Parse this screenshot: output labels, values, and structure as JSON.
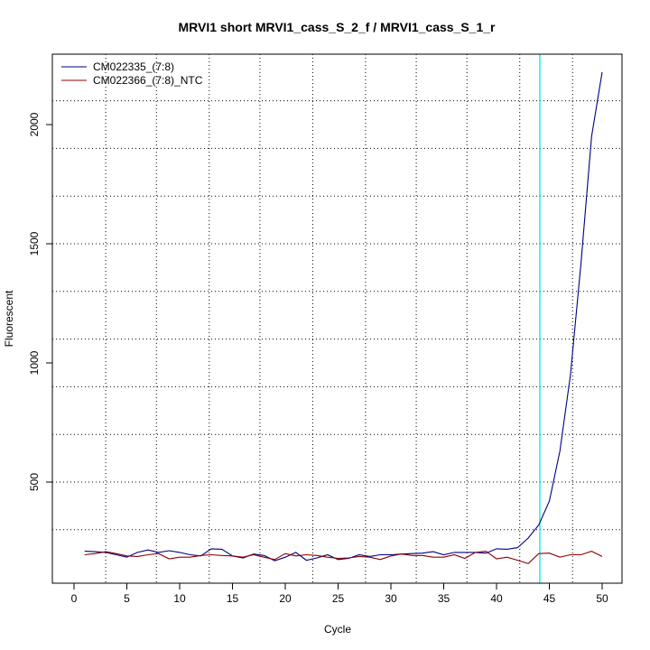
{
  "chart_data": {
    "type": "line",
    "title": "MRVI1 short MRVI1_cass_S_2_f / MRVI1_cass_S_1_r",
    "xlabel": "Cycle",
    "ylabel": "Fluorescent",
    "xlim": [
      0,
      52
    ],
    "ylim": [
      140,
      2290
    ],
    "x_ticks": [
      0,
      5,
      10,
      15,
      20,
      25,
      30,
      35,
      40,
      45,
      50
    ],
    "y_ticks": [
      500,
      1000,
      1500,
      2000
    ],
    "grid": true,
    "grid_x": [
      3,
      7.8,
      12.8,
      17.6,
      22.6,
      27.6,
      32.4,
      37.2,
      42.2,
      47.2
    ],
    "grid_y": [
      300,
      500,
      700,
      900,
      1100,
      1300,
      1500,
      1700,
      1900,
      2100
    ],
    "threshold_cycle": 44.1,
    "threshold_color": "#00e5ee",
    "legend_position": "top-left",
    "x": [
      1,
      2,
      3,
      4,
      5,
      6,
      7,
      8,
      9,
      10,
      11,
      12,
      13,
      14,
      15,
      16,
      17,
      18,
      19,
      20,
      21,
      22,
      23,
      24,
      25,
      26,
      27,
      28,
      29,
      30,
      31,
      32,
      33,
      34,
      35,
      36,
      37,
      38,
      39,
      40,
      41,
      42,
      43,
      44,
      45,
      46,
      47,
      48,
      49,
      50
    ],
    "series": [
      {
        "name": "CM022335_(7:8)",
        "color": "#00007f",
        "values": [
          210,
          208,
          205,
          195,
          185,
          205,
          215,
          205,
          212,
          205,
          195,
          190,
          220,
          218,
          190,
          182,
          198,
          192,
          170,
          185,
          205,
          172,
          182,
          195,
          175,
          180,
          195,
          188,
          195,
          195,
          198,
          200,
          202,
          208,
          195,
          205,
          205,
          205,
          202,
          220,
          218,
          225,
          265,
          320,
          420,
          630,
          950,
          1420,
          1950,
          2220
        ]
      },
      {
        "name": "CM022366_(7:8)_NTC",
        "color": "#8b0000",
        "values": [
          195,
          200,
          208,
          200,
          190,
          188,
          195,
          200,
          178,
          185,
          185,
          192,
          195,
          192,
          190,
          185,
          195,
          185,
          175,
          200,
          190,
          195,
          192,
          185,
          180,
          182,
          188,
          185,
          175,
          190,
          198,
          192,
          192,
          185,
          185,
          195,
          180,
          205,
          210,
          178,
          185,
          172,
          158,
          200,
          202,
          185,
          195,
          195,
          210,
          188
        ]
      }
    ]
  }
}
